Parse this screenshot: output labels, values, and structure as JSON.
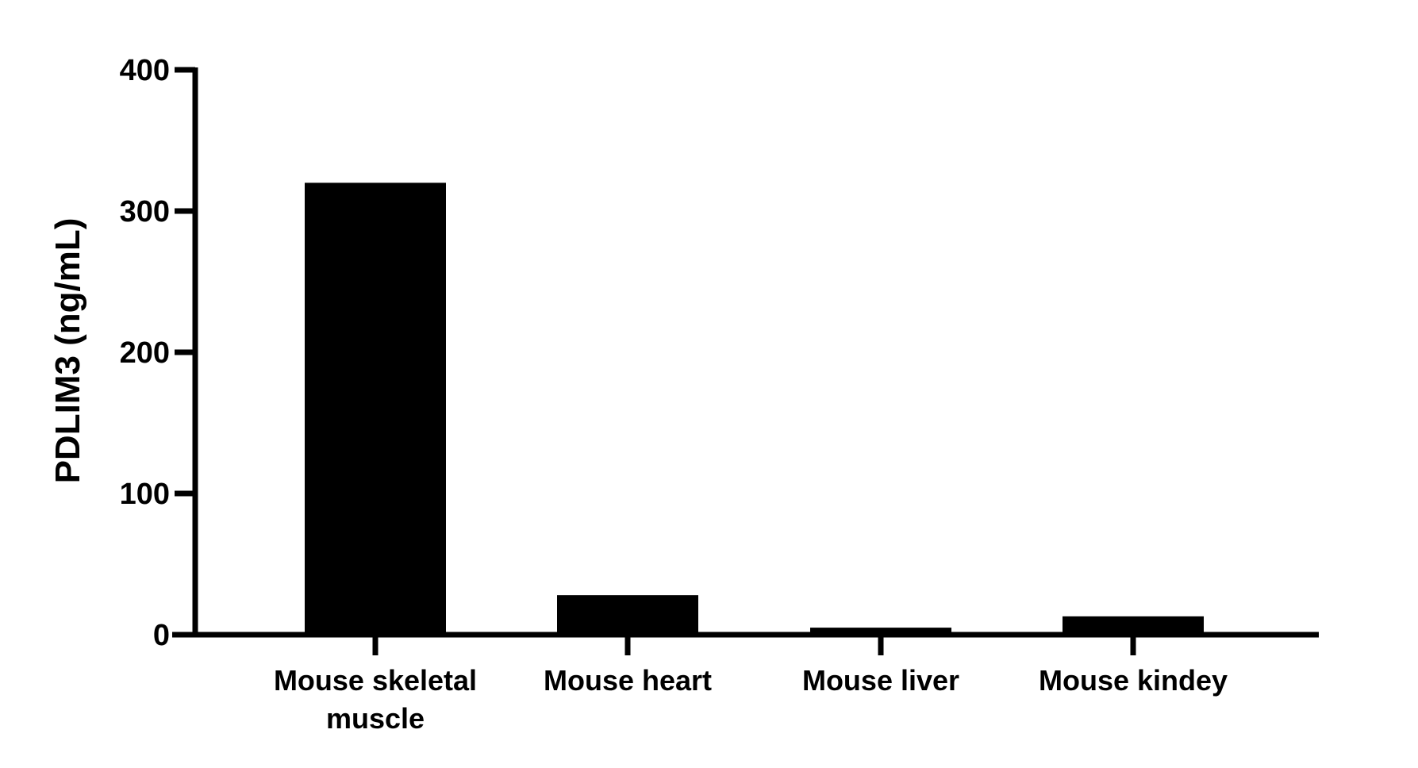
{
  "chart_data": {
    "type": "bar",
    "title": "",
    "xlabel": "",
    "ylabel": "PDLIM3 (ng/mL)",
    "categories": [
      [
        "Mouse skeletal",
        "muscle"
      ],
      [
        "Mouse heart"
      ],
      [
        "Mouse liver"
      ],
      [
        "Mouse kindey"
      ]
    ],
    "values": [
      320,
      28,
      5,
      13
    ],
    "ylim": [
      0,
      400
    ],
    "yticks": [
      0,
      100,
      200,
      300,
      400
    ],
    "ytick_labels": [
      "0",
      "100",
      "200",
      "300",
      "400"
    ],
    "grid": false,
    "legend": "none",
    "bar_color": "#000000"
  }
}
